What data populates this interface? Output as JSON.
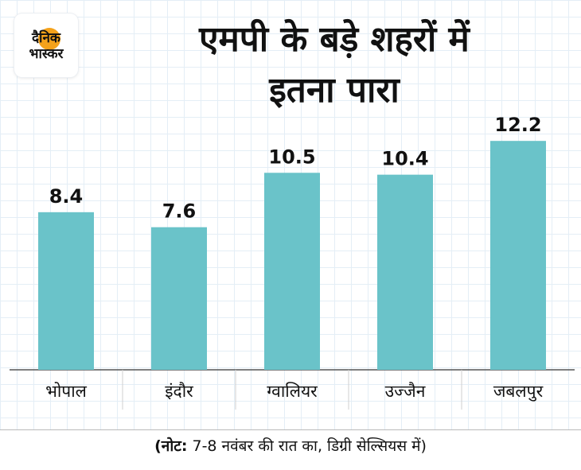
{
  "logo": {
    "line1": "दैनिक",
    "line2": "भास्कर"
  },
  "title": {
    "line1": "एमपी के बड़े शहरों में",
    "line2": "इतना पारा"
  },
  "note": {
    "label": "(नोट:",
    "text": " 7-8 नवंबर की रात का, डिग्री सेल्सियस में)"
  },
  "colors": {
    "bar": "#6ac3c9",
    "axis": "#555555",
    "text": "#111111"
  },
  "chart_data": {
    "type": "bar",
    "title": "एमपी के बड़े शहरों में इतना पारा",
    "categories": [
      "भोपाल",
      "इंदौर",
      "ग्वालियर",
      "उज्जैन",
      "जबलपुर"
    ],
    "values": [
      8.4,
      7.6,
      10.5,
      10.4,
      12.2
    ],
    "value_labels": [
      "8.4",
      "7.6",
      "10.5",
      "10.4",
      "12.2"
    ],
    "xlabel": "",
    "ylabel": "",
    "ylim": [
      0,
      14.2
    ],
    "grid": false,
    "legend": "none"
  }
}
